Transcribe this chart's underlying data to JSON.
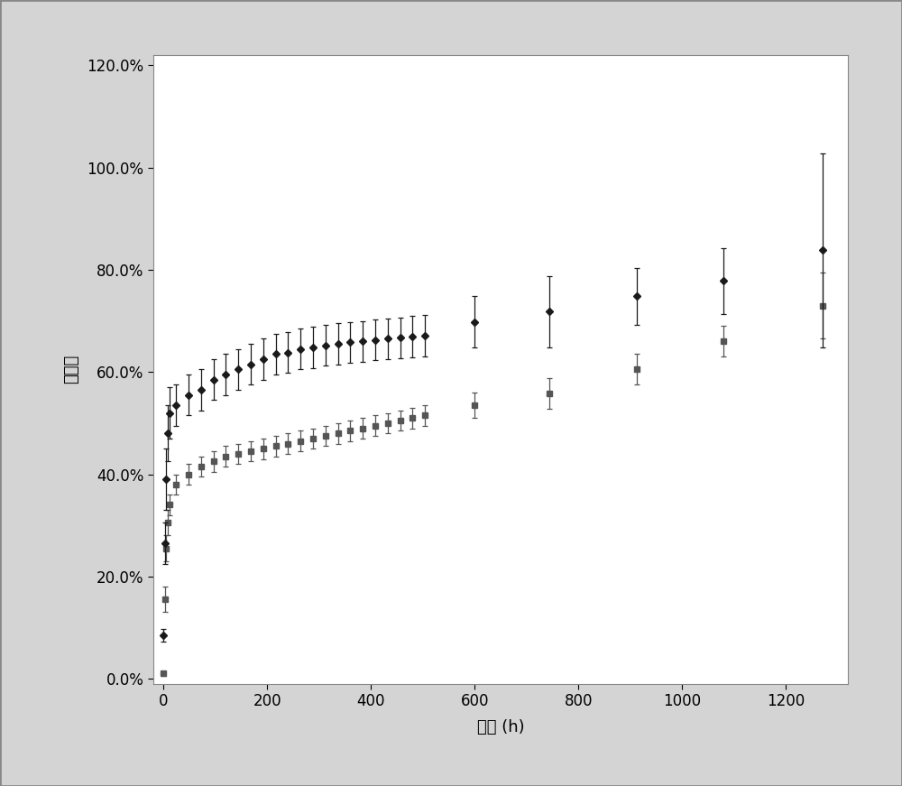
{
  "series1_x": [
    0,
    2,
    4,
    8,
    12,
    24,
    48,
    72,
    96,
    120,
    144,
    168,
    192,
    216,
    240,
    264,
    288,
    312,
    336,
    360,
    384,
    408,
    432,
    456,
    480,
    504,
    600,
    744,
    912,
    1080,
    1272
  ],
  "series1_y": [
    0.085,
    0.265,
    0.39,
    0.48,
    0.52,
    0.535,
    0.555,
    0.565,
    0.585,
    0.595,
    0.605,
    0.615,
    0.625,
    0.635,
    0.638,
    0.645,
    0.648,
    0.652,
    0.655,
    0.658,
    0.66,
    0.663,
    0.665,
    0.667,
    0.669,
    0.671,
    0.698,
    0.718,
    0.748,
    0.778,
    0.838
  ],
  "series1_yerr": [
    0.012,
    0.04,
    0.06,
    0.055,
    0.05,
    0.04,
    0.04,
    0.04,
    0.04,
    0.04,
    0.04,
    0.04,
    0.04,
    0.04,
    0.04,
    0.04,
    0.04,
    0.04,
    0.04,
    0.04,
    0.04,
    0.04,
    0.04,
    0.04,
    0.04,
    0.04,
    0.05,
    0.07,
    0.055,
    0.065,
    0.19
  ],
  "series2_x": [
    0,
    2,
    4,
    8,
    12,
    24,
    48,
    72,
    96,
    120,
    144,
    168,
    192,
    216,
    240,
    264,
    288,
    312,
    336,
    360,
    384,
    408,
    432,
    456,
    480,
    504,
    600,
    744,
    912,
    1080,
    1272
  ],
  "series2_y": [
    0.01,
    0.155,
    0.255,
    0.305,
    0.34,
    0.38,
    0.4,
    0.415,
    0.425,
    0.435,
    0.44,
    0.445,
    0.45,
    0.455,
    0.46,
    0.465,
    0.47,
    0.475,
    0.48,
    0.485,
    0.49,
    0.495,
    0.5,
    0.505,
    0.51,
    0.515,
    0.535,
    0.558,
    0.605,
    0.66,
    0.73
  ],
  "series2_yerr": [
    0.005,
    0.025,
    0.025,
    0.025,
    0.02,
    0.02,
    0.02,
    0.02,
    0.02,
    0.02,
    0.02,
    0.02,
    0.02,
    0.02,
    0.02,
    0.02,
    0.02,
    0.02,
    0.02,
    0.02,
    0.02,
    0.02,
    0.02,
    0.02,
    0.02,
    0.02,
    0.025,
    0.03,
    0.03,
    0.03,
    0.065
  ],
  "series1_color": "#1a1a1a",
  "series2_color": "#555555",
  "xlabel": "时间 (h)",
  "ylabel": "百分比",
  "xlim": [
    -20,
    1320
  ],
  "ylim": [
    -0.01,
    1.22
  ],
  "xticks": [
    0,
    200,
    400,
    600,
    800,
    1000,
    1200
  ],
  "yticks": [
    0.0,
    0.2,
    0.4,
    0.6,
    0.8,
    1.0,
    1.2
  ],
  "outer_bg": "#d4d4d4",
  "plot_bg": "#ffffff",
  "border_color": "#999999"
}
